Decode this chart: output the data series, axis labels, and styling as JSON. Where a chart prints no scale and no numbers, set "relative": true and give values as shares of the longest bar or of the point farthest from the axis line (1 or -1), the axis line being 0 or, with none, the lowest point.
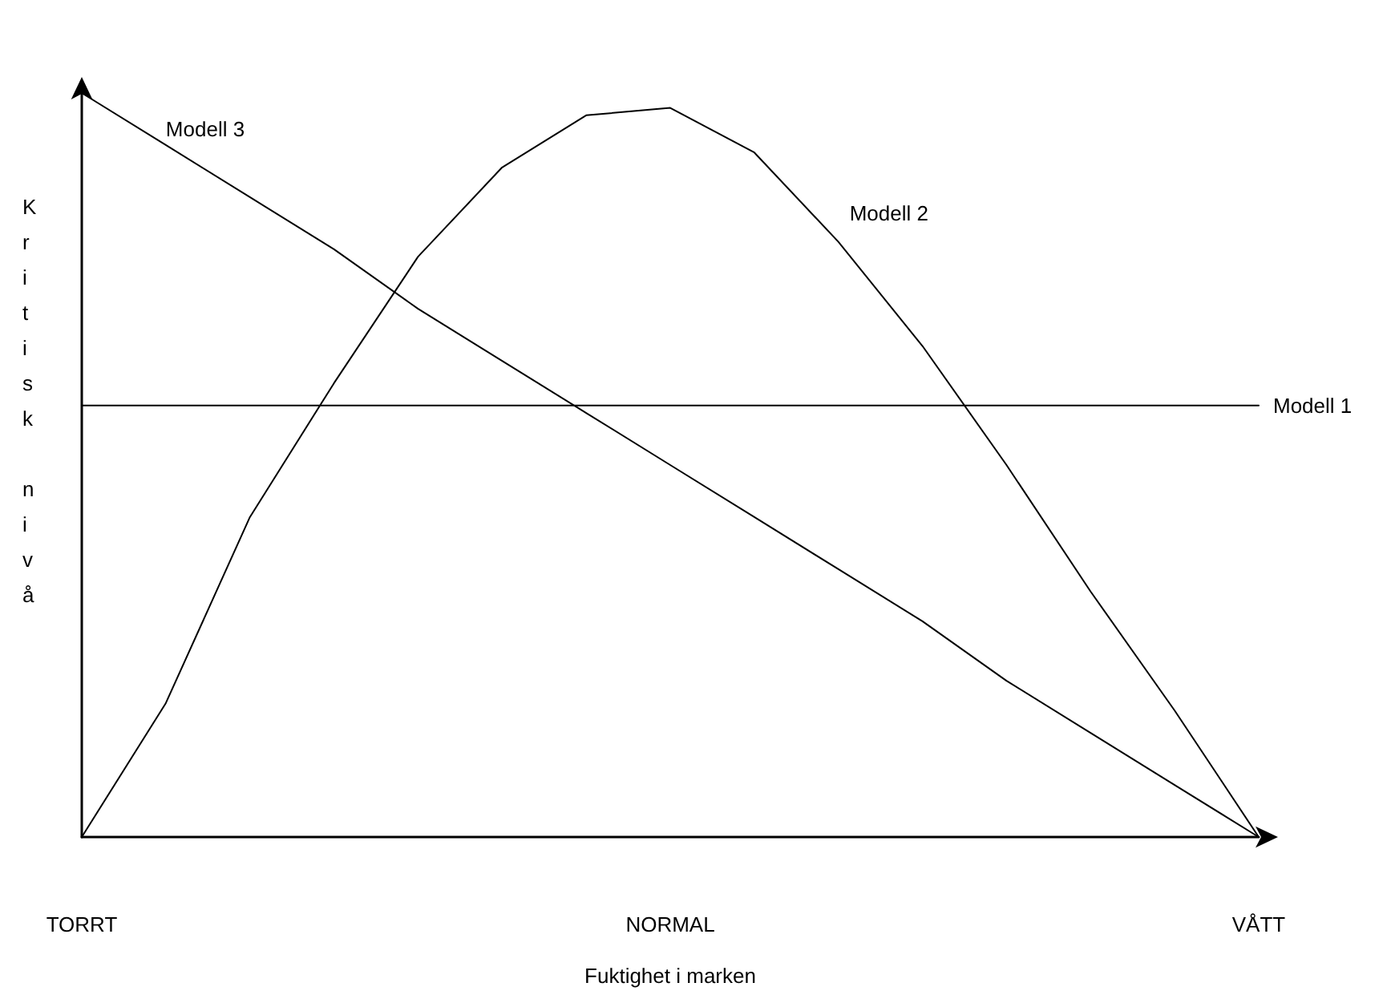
{
  "chart_data": {
    "type": "line",
    "relative": true,
    "xlabel": "Fuktighet i marken",
    "ylabel": "Kritisk nivå",
    "marker": "none",
    "grid": false,
    "categories": [
      "TORRT",
      null,
      null,
      null,
      null,
      null,
      null,
      "NORMAL",
      null,
      null,
      null,
      null,
      null,
      null,
      "VÅTT"
    ],
    "series": [
      {
        "name": "Modell 1",
        "color": "#000000",
        "values": [
          0.58,
          0.58,
          0.58,
          0.58,
          0.58,
          0.58,
          0.58,
          0.58,
          0.58,
          0.58,
          0.58,
          0.58,
          0.58,
          0.58,
          0.58
        ]
      },
      {
        "name": "Modell 2",
        "color": "#000000",
        "values": [
          0,
          0.18,
          0.43,
          0.61,
          0.78,
          0.9,
          0.97,
          0.98,
          0.92,
          0.8,
          0.66,
          0.5,
          0.33,
          0.17,
          0
        ]
      },
      {
        "name": "Modell 3",
        "color": "#000000",
        "values": [
          1,
          0.93,
          0.86,
          0.79,
          0.71,
          0.64,
          0.57,
          0.5,
          0.43,
          0.36,
          0.29,
          0.21,
          0.14,
          0.07,
          0
        ]
      }
    ]
  }
}
